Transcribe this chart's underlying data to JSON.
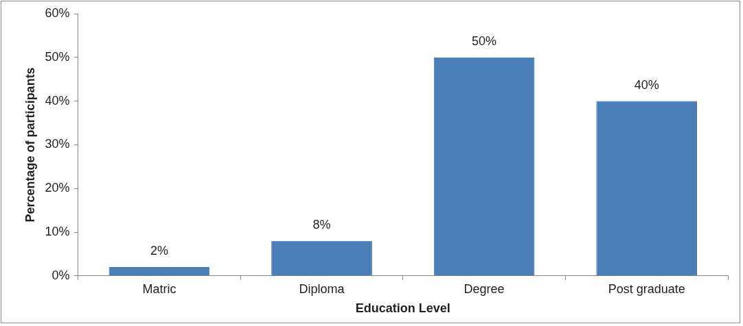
{
  "chart_data": {
    "type": "bar",
    "xlabel": "Education Level",
    "ylabel": "Percentage of participants",
    "categories": [
      "Matric",
      "Diploma",
      "Degree",
      "Post graduate"
    ],
    "values": [
      2,
      8,
      50,
      40
    ],
    "value_labels": [
      "2%",
      "8%",
      "50%",
      "40%"
    ],
    "color": "#4a7ebb",
    "ylim": [
      0,
      60
    ],
    "yticks": [
      {
        "value": 0,
        "label": "0%"
      },
      {
        "value": 10,
        "label": "10%"
      },
      {
        "value": 20,
        "label": "20%"
      },
      {
        "value": 30,
        "label": "30%"
      },
      {
        "value": 40,
        "label": "40%"
      },
      {
        "value": 50,
        "label": "50%"
      },
      {
        "value": 60,
        "label": "60%"
      }
    ],
    "grid": false,
    "legend": false
  }
}
